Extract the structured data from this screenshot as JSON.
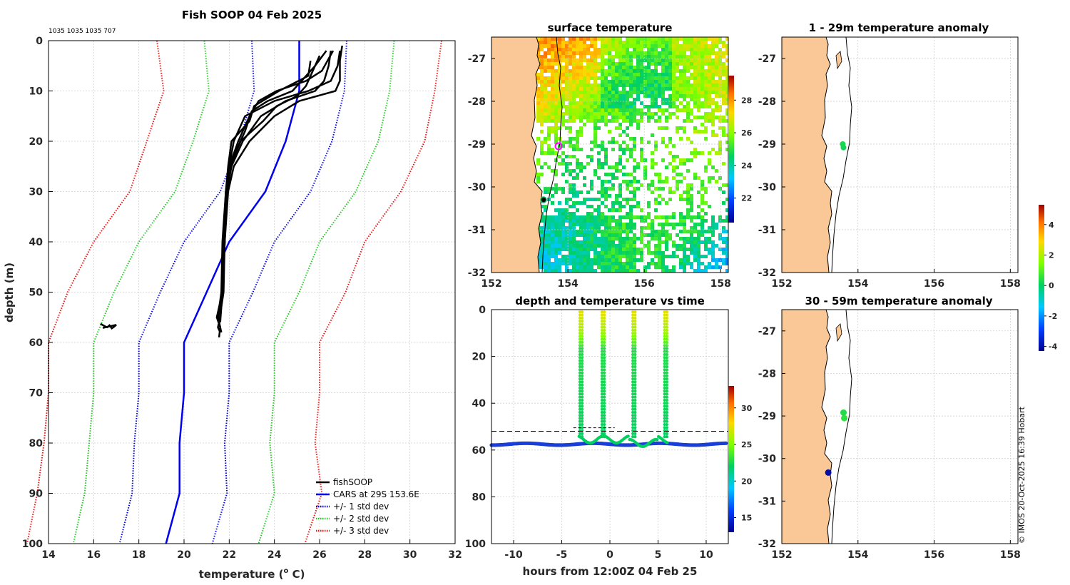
{
  "main_title": "Fish SOOP 04 Feb 2025",
  "id_line": "1035 1035 1035 707",
  "credit": "© IMOS 20-Oct-2025 16:39 Hobart",
  "colors": {
    "fishsoop": "#000000",
    "cars": "#0000ee",
    "std1": "#0000ee",
    "std2": "#22cc22",
    "std3": "#ee1111",
    "land": "#f9c896",
    "grid": "#d0d0d0"
  },
  "chart_data": [
    {
      "id": "profile",
      "type": "line",
      "title": "Fish SOOP 04 Feb 2025",
      "xlabel": "temperature (° C)",
      "xlabel_main": "temperature (",
      "xlabel_sup": "o",
      "xlabel_end": " C)",
      "ylabel": "depth (m)",
      "xlim": [
        14,
        32
      ],
      "ylim": [
        0,
        100
      ],
      "xticks": [
        "14",
        "16",
        "18",
        "20",
        "22",
        "24",
        "26",
        "28",
        "30",
        "32"
      ],
      "yticks": [
        "0",
        "10",
        "20",
        "30",
        "40",
        "50",
        "60",
        "70",
        "80",
        "90",
        "100"
      ],
      "legend": [
        "fishSOOP",
        "CARS at 29S 153.6E",
        "+/- 1 std dev",
        "+/- 2 std dev",
        "+/- 3 std dev"
      ],
      "cars": {
        "depth": [
          0,
          10,
          20,
          30,
          40,
          50,
          60,
          70,
          80,
          90,
          100
        ],
        "temp": [
          25.1,
          25.1,
          24.5,
          23.6,
          22.0,
          21.0,
          20.0,
          20.0,
          19.8,
          19.8,
          19.2
        ]
      },
      "std_offsets": {
        "depth": [
          0,
          10,
          20,
          30,
          40,
          50,
          60,
          70,
          80,
          90,
          100
        ],
        "sd": [
          2.1,
          2.0,
          2.05,
          2.0,
          2.0,
          2.05,
          2.0,
          2.0,
          2.0,
          2.1,
          2.05
        ]
      },
      "fishsoop_casts": [
        {
          "depth": [
            2,
            5,
            8,
            10,
            12,
            15,
            20,
            25,
            30,
            40,
            50,
            55,
            57,
            59
          ],
          "temp": [
            26.9,
            26.8,
            26.5,
            25.5,
            24.0,
            22.7,
            22.2,
            22.0,
            21.85,
            21.75,
            21.7,
            21.5,
            21.6,
            21.55
          ]
        },
        {
          "depth": [
            2,
            5,
            8,
            10,
            12,
            15,
            20,
            25,
            30,
            40,
            50,
            55,
            57,
            58
          ],
          "temp": [
            26.5,
            26.4,
            26.2,
            25.8,
            24.5,
            23.4,
            22.6,
            22.1,
            21.9,
            21.8,
            21.7,
            21.6,
            21.5,
            21.6
          ]
        },
        {
          "depth": [
            1,
            4,
            8,
            10,
            12,
            15,
            20,
            25,
            30,
            40,
            50,
            55,
            57
          ],
          "temp": [
            27.0,
            26.9,
            26.9,
            26.7,
            25.1,
            24.0,
            22.9,
            22.2,
            21.95,
            21.8,
            21.7,
            21.45,
            21.6
          ]
        },
        {
          "depth": [
            2,
            6,
            8,
            10,
            12,
            15,
            20,
            25,
            30,
            40,
            50,
            55,
            58
          ],
          "temp": [
            26.6,
            26.1,
            25.4,
            24.1,
            23.3,
            22.9,
            22.4,
            22.0,
            21.85,
            21.7,
            21.65,
            21.5,
            21.65
          ]
        },
        {
          "depth": [
            2,
            5,
            8,
            10,
            12,
            14,
            18,
            22,
            26,
            30,
            40,
            50,
            56
          ],
          "temp": [
            26.3,
            25.8,
            25.2,
            24.8,
            23.7,
            23.0,
            22.7,
            22.3,
            22.0,
            21.9,
            21.8,
            21.75,
            21.55
          ]
        },
        {
          "depth": [
            3,
            6,
            9,
            11,
            13,
            16,
            20,
            25,
            30,
            40,
            50,
            56
          ],
          "temp": [
            26.0,
            25.7,
            25.4,
            25.0,
            24.1,
            23.5,
            22.5,
            22.05,
            21.9,
            21.8,
            21.7,
            21.6
          ]
        },
        {
          "depth": [
            4,
            7,
            10,
            13,
            16,
            20,
            25,
            30,
            40,
            50,
            55
          ],
          "temp": [
            25.6,
            25.5,
            24.2,
            23.1,
            22.9,
            22.1,
            21.95,
            21.85,
            21.75,
            21.7,
            21.5
          ]
        }
      ],
      "fishsoop_cluster": {
        "depth": [
          56.3,
          56.8,
          57.0,
          56.6,
          57.2,
          56.9,
          56.5,
          57.1
        ],
        "temp": [
          16.3,
          16.5,
          16.6,
          16.7,
          16.8,
          16.9,
          17.0,
          16.4
        ]
      }
    },
    {
      "id": "sst",
      "type": "heatmap",
      "title": "surface temperature",
      "xticks": [
        "152",
        "154",
        "156",
        "158"
      ],
      "yticks": [
        "-27",
        "-28",
        "-29",
        "-30",
        "-31",
        "-32"
      ],
      "xlim": [
        152,
        158.2
      ],
      "ylim": [
        -32,
        -26.5
      ],
      "colorbar": {
        "range": [
          20.5,
          29.5
        ],
        "ticks": [
          "22",
          "24",
          "26",
          "28"
        ]
      }
    },
    {
      "id": "depthtime",
      "type": "scatter",
      "title": "depth and temperature vs time",
      "xlabel": "hours from 12:00Z 04 Feb 25",
      "xticks": [
        "-10",
        "-5",
        "0",
        "5",
        "10"
      ],
      "yticks": [
        "0",
        "20",
        "40",
        "60",
        "80",
        "100"
      ],
      "xlim": [
        -12.3,
        12.3
      ],
      "ylim": [
        0,
        100
      ],
      "dashed_depth": 52,
      "seabed_depth": 57.5,
      "profile_hours": [
        -3.0,
        -0.7,
        2.5,
        5.8
      ],
      "colorbar": {
        "range": [
          13,
          33
        ],
        "ticks": [
          "15",
          "20",
          "25",
          "30"
        ]
      }
    },
    {
      "id": "anom1",
      "type": "scatter",
      "title": "1 - 29m temperature anomaly",
      "xticks": [
        "152",
        "154",
        "156",
        "158"
      ],
      "yticks": [
        "-27",
        "-28",
        "-29",
        "-30",
        "-31",
        "-32"
      ],
      "xlim": [
        152,
        158.2
      ],
      "ylim": [
        -32,
        -26.5
      ],
      "points": [
        {
          "lon": 153.6,
          "lat": -29.0,
          "anom": 0.3
        },
        {
          "lon": 153.62,
          "lat": -29.08,
          "anom": 0.2
        }
      ]
    },
    {
      "id": "anom2",
      "type": "scatter",
      "title": "30 - 59m temperature anomaly",
      "xticks": [
        "152",
        "154",
        "156",
        "158"
      ],
      "yticks": [
        "-27",
        "-28",
        "-29",
        "-30",
        "-31",
        "-32"
      ],
      "xlim": [
        152,
        158.2
      ],
      "ylim": [
        -32,
        -26.5
      ],
      "points": [
        {
          "lon": 153.62,
          "lat": -28.92,
          "anom": 0.4
        },
        {
          "lon": 153.64,
          "lat": -29.05,
          "anom": 0.5
        },
        {
          "lon": 153.22,
          "lat": -30.33,
          "anom": -4.0
        }
      ],
      "colorbar": {
        "range": [
          -4.3,
          5.3
        ],
        "ticks": [
          "4",
          "2",
          "0",
          "-2",
          "-4"
        ]
      }
    }
  ]
}
